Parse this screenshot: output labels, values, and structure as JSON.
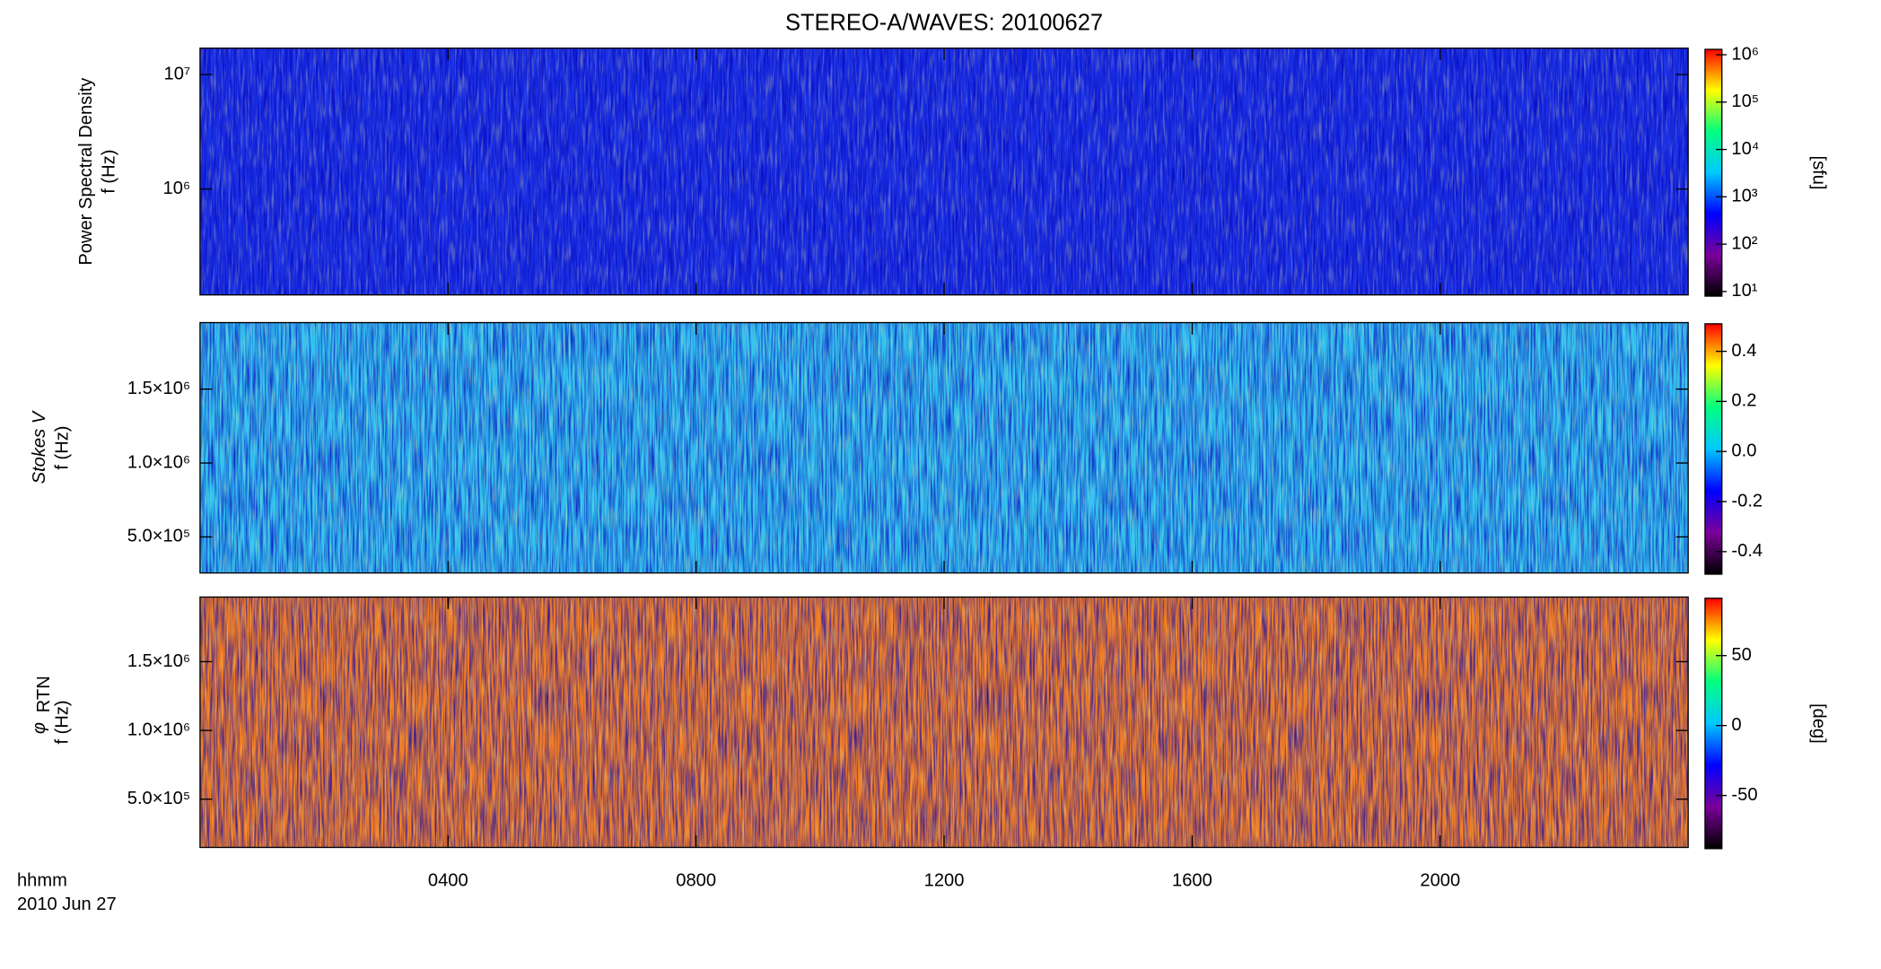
{
  "title": "STEREO-A/WAVES: 20100627",
  "x_axis": {
    "label_lines": [
      "hhmm",
      "2010 Jun 27"
    ],
    "xlim": [
      0,
      24
    ],
    "xticks": [
      {
        "value": 4,
        "label": "0400"
      },
      {
        "value": 8,
        "label": "0800"
      },
      {
        "value": 12,
        "label": "1200"
      },
      {
        "value": 16,
        "label": "1600"
      },
      {
        "value": 20,
        "label": "2000"
      }
    ]
  },
  "chart_data": [
    {
      "type": "heatmap",
      "ylabel": [
        "Power Spectral Density",
        "f (Hz)"
      ],
      "log_y": true,
      "ylim": [
        119000,
        17000000
      ],
      "yticks": [
        {
          "value": 1000000,
          "label": "10⁶"
        },
        {
          "value": 10000000,
          "label": "10⁷"
        }
      ],
      "color": "#1c33e6",
      "colorbar": {
        "log": true,
        "lim": [
          8,
          1300000
        ],
        "label": "[sfu]",
        "ticks": [
          {
            "value": 10,
            "label": "10¹"
          },
          {
            "value": 100,
            "label": "10²"
          },
          {
            "value": 1000,
            "label": "10³"
          },
          {
            "value": 10000,
            "label": "10⁴"
          },
          {
            "value": 100000,
            "label": "10⁵"
          },
          {
            "value": 1000000,
            "label": "10⁶"
          }
        ],
        "colormap": [
          "#000000",
          "#7b0099",
          "#0000ff",
          "#00c8ff",
          "#00ff80",
          "#ffff00",
          "#ff0000"
        ]
      }
    },
    {
      "type": "heatmap",
      "ylabel": [
        "Stokes V",
        "f (Hz)"
      ],
      "log_y": false,
      "ylim": [
        256000,
        1950000
      ],
      "yticks": [
        {
          "value": 500000,
          "label": "5.0×10⁵"
        },
        {
          "value": 1000000,
          "label": "1.0×10⁶"
        },
        {
          "value": 1500000,
          "label": "1.5×10⁶"
        }
      ],
      "color": "#33c4ef",
      "colorbar": {
        "log": false,
        "lim": [
          -0.49,
          0.51
        ],
        "ticks": [
          -0.4,
          -0.2,
          {
            "value": 0,
            "label": "0.0"
          },
          0.2,
          0.4
        ],
        "colormap": [
          "#000000",
          "#7b0099",
          "#0000ff",
          "#00c8ff",
          "#00ff80",
          "#ffff00",
          "#ff0000"
        ]
      }
    },
    {
      "type": "heatmap",
      "ylabel": [
        "φ",
        "f (Hz)"
      ],
      "ylabel_subscript": "RTN",
      "log_y": false,
      "ylim": [
        149000,
        1970000
      ],
      "yticks": [
        {
          "value": 500000,
          "label": "5.0×10⁵"
        },
        {
          "value": 1000000,
          "label": "1.0×10⁶"
        },
        {
          "value": 1500000,
          "label": "1.5×10⁶"
        }
      ],
      "color": "#f07c22",
      "colorbar": {
        "log": false,
        "lim": [
          -88,
          91
        ],
        "label": "[deg]",
        "ticks": [
          -50,
          0,
          50
        ],
        "colormap": [
          "#000000",
          "#7b0099",
          "#0000ff",
          "#00c8ff",
          "#00ff80",
          "#ffff00",
          "#ff0000"
        ]
      }
    }
  ]
}
